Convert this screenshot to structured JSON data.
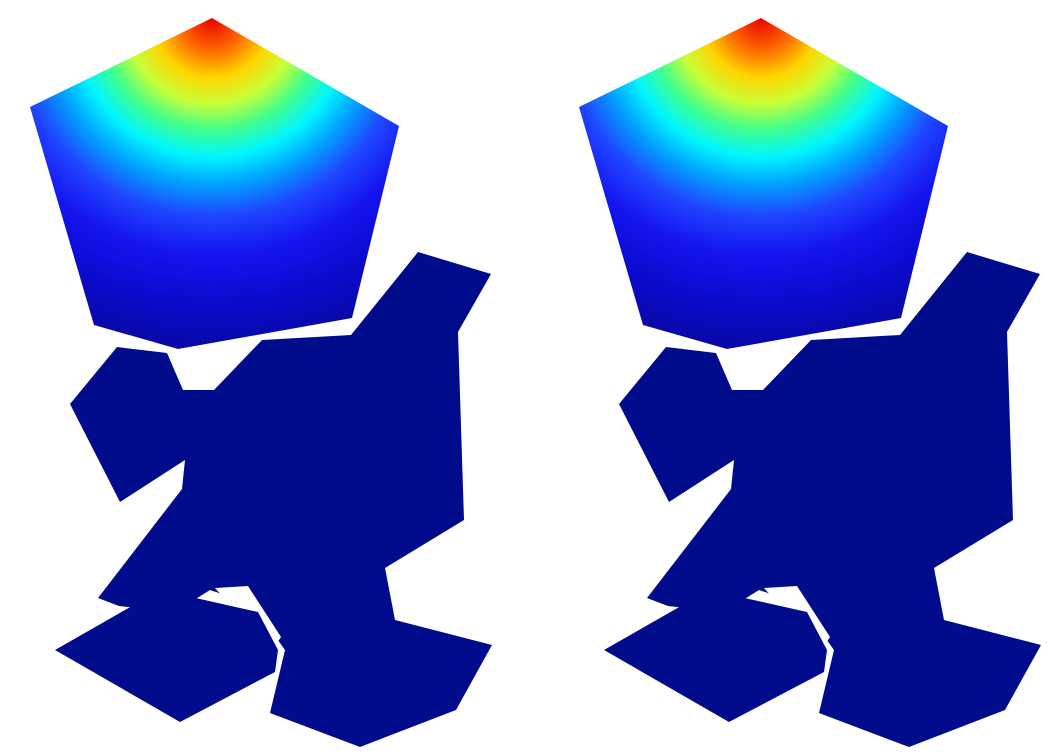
{
  "figure": {
    "panel_count": 2,
    "panels": [
      {
        "id": "left",
        "shape": "pentagon-head-polygon-figure"
      },
      {
        "id": "right",
        "shape": "pentagon-head-polygon-figure"
      }
    ]
  },
  "colors": {
    "background": "#ffffff",
    "body_fill": "#000c8c",
    "colormap": [
      {
        "stop": 0.0,
        "color": "#e60000"
      },
      {
        "stop": 0.1,
        "color": "#ff6a00"
      },
      {
        "stop": 0.18,
        "color": "#ffd500"
      },
      {
        "stop": 0.26,
        "color": "#c8ff38"
      },
      {
        "stop": 0.34,
        "color": "#3fff8f"
      },
      {
        "stop": 0.42,
        "color": "#00f6ff"
      },
      {
        "stop": 0.5,
        "color": "#00a6ff"
      },
      {
        "stop": 0.6,
        "color": "#1f46ff"
      },
      {
        "stop": 0.72,
        "color": "#1414f0"
      },
      {
        "stop": 0.85,
        "color": "#0b0bd0"
      },
      {
        "stop": 1.0,
        "color": "#0808a8"
      }
    ]
  }
}
